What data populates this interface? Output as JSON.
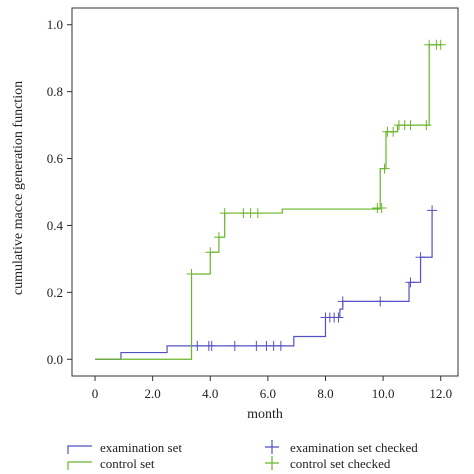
{
  "chart_data": {
    "type": "line",
    "step": true,
    "xlabel": "month",
    "ylabel": "cumulative macce generation function",
    "xlim": [
      -0.8,
      12.6
    ],
    "ylim": [
      -0.05,
      1.05
    ],
    "xticks": [
      0.0,
      2.0,
      4.0,
      6.0,
      8.0,
      10.0,
      12.0
    ],
    "xtick_labels": [
      "0",
      "2.0",
      "4.0",
      "6.0",
      "8.0",
      "10.0",
      "12.0"
    ],
    "yticks": [
      0.0,
      0.2,
      0.4,
      0.6,
      0.8,
      1.0
    ],
    "ytick_labels": [
      "0.0",
      "0.2",
      "0.4",
      "0.6",
      "0.8",
      "1.0"
    ],
    "grid": false,
    "legend_position": "bottom",
    "series": [
      {
        "name": "examination set",
        "color": "#5252c4",
        "steps": [
          [
            0,
            0
          ],
          [
            0.9,
            0.02
          ],
          [
            2.5,
            0.04
          ],
          [
            6.9,
            0.068
          ],
          [
            8.0,
            0.125
          ],
          [
            8.5,
            0.15
          ],
          [
            8.6,
            0.173
          ],
          [
            10.9,
            0.23
          ],
          [
            11.3,
            0.305
          ],
          [
            11.7,
            0.445
          ]
        ],
        "end_x": 11.7
      },
      {
        "name": "control set",
        "color": "#6ab52c",
        "steps": [
          [
            0,
            0
          ],
          [
            3.35,
            0.255
          ],
          [
            4.0,
            0.32
          ],
          [
            4.3,
            0.365
          ],
          [
            4.5,
            0.437
          ],
          [
            6.5,
            0.449
          ],
          [
            9.9,
            0.57
          ],
          [
            10.1,
            0.68
          ],
          [
            10.5,
            0.7
          ],
          [
            11.6,
            0.94
          ]
        ],
        "end_x": 12.0
      }
    ],
    "censored": [
      {
        "name": "examination set checked",
        "color": "#5252c4",
        "points": [
          [
            3.55,
            0.04
          ],
          [
            3.95,
            0.04
          ],
          [
            4.05,
            0.04
          ],
          [
            4.85,
            0.04
          ],
          [
            5.6,
            0.04
          ],
          [
            5.95,
            0.04
          ],
          [
            6.2,
            0.04
          ],
          [
            6.45,
            0.04
          ],
          [
            8.0,
            0.125
          ],
          [
            8.15,
            0.125
          ],
          [
            8.3,
            0.125
          ],
          [
            8.45,
            0.125
          ],
          [
            8.6,
            0.173
          ],
          [
            9.9,
            0.173
          ],
          [
            10.95,
            0.23
          ],
          [
            11.3,
            0.305
          ],
          [
            11.7,
            0.445
          ]
        ]
      },
      {
        "name": "control set checked",
        "color": "#6ab52c",
        "points": [
          [
            3.35,
            0.255
          ],
          [
            4.0,
            0.32
          ],
          [
            4.3,
            0.365
          ],
          [
            4.5,
            0.437
          ],
          [
            5.15,
            0.437
          ],
          [
            5.4,
            0.437
          ],
          [
            5.65,
            0.437
          ],
          [
            9.8,
            0.452
          ],
          [
            9.95,
            0.452
          ],
          [
            10.05,
            0.57
          ],
          [
            10.15,
            0.68
          ],
          [
            10.35,
            0.68
          ],
          [
            10.55,
            0.7
          ],
          [
            10.75,
            0.7
          ],
          [
            10.95,
            0.7
          ],
          [
            11.5,
            0.7
          ],
          [
            11.6,
            0.94
          ],
          [
            11.85,
            0.94
          ],
          [
            12.0,
            0.94
          ]
        ]
      }
    ]
  }
}
